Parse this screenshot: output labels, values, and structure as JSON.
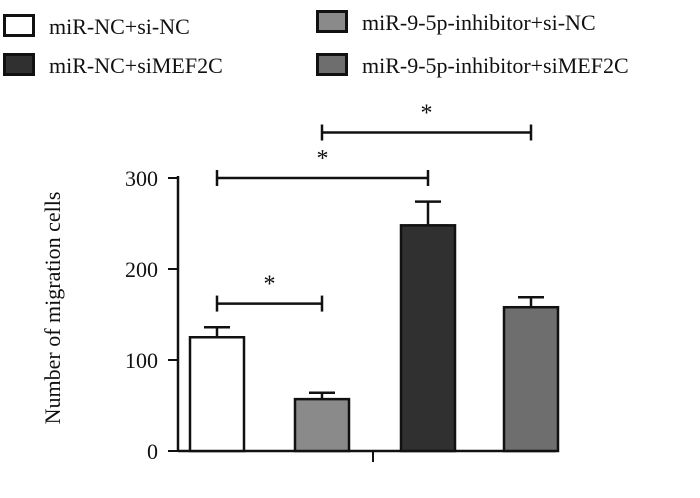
{
  "chart_data": {
    "type": "bar",
    "title": "",
    "xlabel": "",
    "ylabel": "Number of migration cells",
    "ylim": [
      0,
      300
    ],
    "yticks": [
      0,
      100,
      200,
      300
    ],
    "legend_position": "top",
    "series": [
      {
        "name": "miR-NC+si-NC",
        "value": 125,
        "error": 11,
        "color": "#ffffff"
      },
      {
        "name": "miR-9-5p-inhibitor+si-NC",
        "value": 57,
        "error": 7,
        "color": "#8a8a8a"
      },
      {
        "name": "miR-NC+siMEF2C",
        "value": 248,
        "error": 26,
        "color": "#303030"
      },
      {
        "name": "miR-9-5p-inhibitor+siMEF2C",
        "value": 158,
        "error": 11,
        "color": "#6e6e6e"
      }
    ],
    "legend_order": [
      0,
      1,
      2,
      3
    ],
    "significance": [
      {
        "from": 0,
        "to": 1,
        "label": "*",
        "y": 162
      },
      {
        "from": 0,
        "to": 2,
        "label": "*",
        "y": 300
      },
      {
        "from": 1,
        "to": 3,
        "label": "*",
        "y": 350
      }
    ]
  }
}
